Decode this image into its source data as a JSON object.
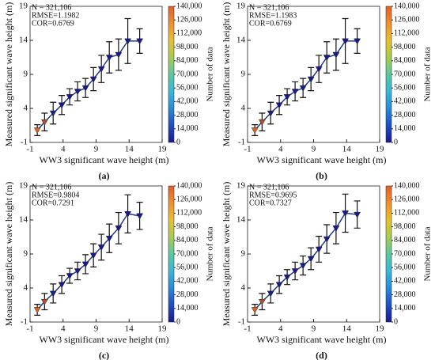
{
  "chart_data": [
    {
      "type": "errorbar",
      "caption": "(a)",
      "xlabel": "WW3 significant wave height (m)",
      "ylabel": "Measured significant wave height (m)",
      "annotations": [
        "N = 321,106",
        "RMSE=1.1982",
        "COR=0.6769"
      ],
      "x": [
        0.1,
        1.2,
        2.5,
        3.8,
        5.0,
        6.2,
        7.4,
        8.6,
        9.8,
        11.0,
        12.4,
        13.8,
        15.6
      ],
      "values": [
        0.8,
        2.0,
        3.3,
        4.5,
        5.7,
        6.5,
        7.0,
        8.3,
        9.8,
        11.5,
        11.9,
        13.9,
        13.9
      ],
      "errors": [
        0.8,
        1.3,
        1.6,
        1.4,
        1.2,
        1.4,
        1.4,
        1.7,
        2.0,
        2.3,
        2.3,
        3.3,
        1.8
      ],
      "point_colors": [
        "#e0601c",
        "#b0502c",
        "#1a237e",
        "#1a1a8c",
        "#1a1a8c",
        "#1a1a8c",
        "#1a1a8c",
        "#1a1a8c",
        "#1a1a8c",
        "#1a1a8c",
        "#1a1a8c",
        "#1a1a8c",
        "#1a1a8c"
      ],
      "line_color": "#1f3a8a",
      "xlim": [
        -1,
        19
      ],
      "xticks": [
        -1,
        4,
        9,
        14,
        19
      ],
      "ylim": [
        -1,
        19
      ],
      "yticks": [
        -1,
        4,
        9,
        14,
        19
      ],
      "colorbar": {
        "label": "Number of data",
        "lim": [
          0,
          140000
        ],
        "ticks": [
          0,
          {
            "value": 14000,
            "label": "14,000"
          },
          {
            "value": 28000,
            "label": "28,000"
          },
          {
            "value": 42000,
            "label": "42,000"
          },
          {
            "value": 56000,
            "label": "56,000"
          },
          {
            "value": 70000,
            "label": "70,000"
          },
          {
            "value": 84000,
            "label": "84,000"
          },
          {
            "value": 98000,
            "label": "98,000"
          },
          {
            "value": 112000,
            "label": "112,000"
          },
          {
            "value": 126000,
            "label": "126,000"
          },
          {
            "value": 140000,
            "label": "140,000"
          }
        ],
        "colors": [
          "#1a1a8c",
          "#1f4fc4",
          "#2a8ad8",
          "#3ab8d8",
          "#5cc8a0",
          "#a8cc50",
          "#e8c030",
          "#f09030",
          "#e0602a"
        ]
      }
    },
    {
      "type": "errorbar",
      "caption": "(b)",
      "xlabel": "WW3 significant wave height (m)",
      "ylabel": "Measured significant wave height (m)",
      "annotations": [
        "N = 321,106",
        "RMSE=1.1983",
        "COR=0.6769"
      ],
      "x": [
        0.1,
        1.2,
        2.5,
        3.8,
        5.0,
        6.2,
        7.4,
        8.6,
        9.8,
        11.0,
        12.4,
        13.8,
        15.6
      ],
      "values": [
        0.8,
        2.0,
        3.3,
        4.5,
        5.7,
        6.5,
        7.0,
        8.3,
        9.8,
        11.5,
        11.9,
        13.9,
        13.9
      ],
      "errors": [
        0.8,
        1.3,
        1.6,
        1.4,
        1.2,
        1.4,
        1.4,
        1.7,
        2.0,
        2.3,
        2.3,
        3.3,
        1.8
      ],
      "point_colors": [
        "#e0601c",
        "#b0502c",
        "#1a237e",
        "#1a1a8c",
        "#1a1a8c",
        "#1a1a8c",
        "#1a1a8c",
        "#1a1a8c",
        "#1a1a8c",
        "#1a1a8c",
        "#1a1a8c",
        "#1a1a8c",
        "#1a1a8c"
      ],
      "line_color": "#1f3a8a",
      "xlim": [
        -1,
        19
      ],
      "xticks": [
        -1,
        4,
        9,
        14,
        19
      ],
      "ylim": [
        -1,
        19
      ],
      "yticks": [
        -1,
        4,
        9,
        14,
        19
      ],
      "colorbar": {
        "label": "Number of data",
        "lim": [
          0,
          140000
        ],
        "ticks": [
          0,
          {
            "value": 14000,
            "label": "14,000"
          },
          {
            "value": 28000,
            "label": "28,000"
          },
          {
            "value": 42000,
            "label": "42,000"
          },
          {
            "value": 56000,
            "label": "56,000"
          },
          {
            "value": 70000,
            "label": "70,000"
          },
          {
            "value": 84000,
            "label": "84,000"
          },
          {
            "value": 98000,
            "label": "98,000"
          },
          {
            "value": 112000,
            "label": "112,000"
          },
          {
            "value": 126000,
            "label": "126,000"
          },
          {
            "value": 140000,
            "label": "140,000"
          }
        ],
        "colors": [
          "#1a1a8c",
          "#1f4fc4",
          "#2a8ad8",
          "#3ab8d8",
          "#5cc8a0",
          "#a8cc50",
          "#e8c030",
          "#f09030",
          "#e0602a"
        ]
      }
    },
    {
      "type": "errorbar",
      "caption": "(c)",
      "xlabel": "WW3 significant wave height (m)",
      "ylabel": "Measured significant wave height (m)",
      "annotations": [
        "N = 321,106",
        "RMSE=0.9804",
        "COR=0.7291"
      ],
      "x": [
        0.1,
        1.2,
        2.5,
        3.8,
        5.0,
        6.2,
        7.4,
        8.6,
        9.8,
        11.0,
        12.4,
        13.8,
        15.6
      ],
      "values": [
        0.8,
        2.0,
        3.2,
        4.5,
        5.8,
        6.5,
        7.5,
        8.8,
        10.0,
        11.3,
        12.8,
        14.9,
        14.6
      ],
      "errors": [
        0.8,
        1.2,
        1.4,
        1.3,
        1.1,
        1.3,
        1.4,
        1.7,
        1.9,
        2.1,
        2.3,
        2.8,
        2.0
      ],
      "point_colors": [
        "#e0601c",
        "#b0502c",
        "#1a237e",
        "#1a1a8c",
        "#1a1a8c",
        "#1a1a8c",
        "#1a1a8c",
        "#1a1a8c",
        "#1a1a8c",
        "#1a1a8c",
        "#1a1a8c",
        "#1a1a8c",
        "#1a1a8c"
      ],
      "line_color": "#1f3a8a",
      "xlim": [
        -1,
        19
      ],
      "xticks": [
        -1,
        4,
        9,
        14,
        19
      ],
      "ylim": [
        -1,
        19
      ],
      "yticks": [
        -1,
        4,
        9,
        14,
        19
      ],
      "colorbar": {
        "label": "Number of data",
        "lim": [
          0,
          140000
        ],
        "ticks": [
          0,
          {
            "value": 14000,
            "label": "14,000"
          },
          {
            "value": 28000,
            "label": "28,000"
          },
          {
            "value": 42000,
            "label": "42,000"
          },
          {
            "value": 56000,
            "label": "56,000"
          },
          {
            "value": 70000,
            "label": "70,000"
          },
          {
            "value": 84000,
            "label": "84,000"
          },
          {
            "value": 98000,
            "label": "98,000"
          },
          {
            "value": 112000,
            "label": "112,000"
          },
          {
            "value": 126000,
            "label": "126,000"
          },
          {
            "value": 140000,
            "label": "140,000"
          }
        ],
        "colors": [
          "#1a1a8c",
          "#1f4fc4",
          "#2a8ad8",
          "#3ab8d8",
          "#5cc8a0",
          "#a8cc50",
          "#e8c030",
          "#f09030",
          "#e0602a"
        ]
      }
    },
    {
      "type": "errorbar",
      "caption": "(d)",
      "xlabel": "WW3 significant wave height (m)",
      "ylabel": "Measured significant wave height (m)",
      "annotations": [
        "N = 321,106",
        "RMSE=0.9695",
        "COR=0.7327"
      ],
      "x": [
        0.1,
        1.2,
        2.5,
        3.8,
        5.0,
        6.2,
        7.4,
        8.6,
        9.8,
        11.0,
        12.4,
        13.8,
        15.6
      ],
      "values": [
        0.8,
        2.0,
        3.2,
        4.5,
        5.6,
        6.5,
        7.3,
        8.3,
        9.7,
        11.2,
        12.8,
        15.0,
        14.8
      ],
      "errors": [
        0.8,
        1.2,
        1.4,
        1.3,
        1.1,
        1.3,
        1.4,
        1.6,
        1.9,
        2.1,
        2.3,
        2.8,
        2.0
      ],
      "point_colors": [
        "#e0601c",
        "#b0502c",
        "#1a237e",
        "#1a1a8c",
        "#1a1a8c",
        "#1a1a8c",
        "#1a1a8c",
        "#1a1a8c",
        "#1a1a8c",
        "#1a1a8c",
        "#1a1a8c",
        "#1a1a8c",
        "#1a1a8c"
      ],
      "line_color": "#1f3a8a",
      "xlim": [
        -1,
        19
      ],
      "xticks": [
        -1,
        4,
        9,
        14,
        19
      ],
      "ylim": [
        -1,
        19
      ],
      "yticks": [
        -1,
        4,
        9,
        14,
        19
      ],
      "colorbar": {
        "label": "Number of data",
        "lim": [
          0,
          140000
        ],
        "ticks": [
          0,
          {
            "value": 14000,
            "label": "14,000"
          },
          {
            "value": 28000,
            "label": "28,000"
          },
          {
            "value": 42000,
            "label": "42,000"
          },
          {
            "value": 56000,
            "label": "56,000"
          },
          {
            "value": 70000,
            "label": "70,000"
          },
          {
            "value": 84000,
            "label": "84,000"
          },
          {
            "value": 98000,
            "label": "98,000"
          },
          {
            "value": 112000,
            "label": "112,000"
          },
          {
            "value": 126000,
            "label": "126,000"
          },
          {
            "value": 140000,
            "label": "140,000"
          }
        ],
        "colors": [
          "#1a1a8c",
          "#1f4fc4",
          "#2a8ad8",
          "#3ab8d8",
          "#5cc8a0",
          "#a8cc50",
          "#e8c030",
          "#f09030",
          "#e0602a"
        ]
      }
    }
  ]
}
